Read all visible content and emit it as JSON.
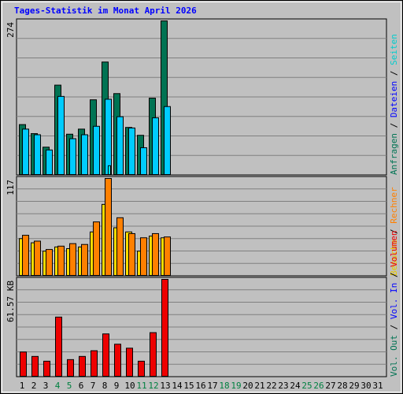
{
  "title": "Tages-Statistik im Monat April 2026",
  "colors": {
    "frame_bg": "#c0c0c0",
    "plot_bg": "#c0c0c0",
    "grid": "#808080",
    "title": "#0000ff",
    "requests": "#007353",
    "files": "#00ccff",
    "pages": "#00ffff",
    "visits": "#ffdd00",
    "sites": "#ff8000",
    "kbytes": "#ee0000",
    "weekend_label": "#008040",
    "day_label": "#000000",
    "vol_in": "#0000ff",
    "vol_out": "#007353"
  },
  "right_legend": {
    "top": [
      {
        "text": "Anfragen",
        "color": "#007353"
      },
      {
        "text": "Dateien",
        "color": "#0000ff"
      },
      {
        "text": "Seiten",
        "color": "#00cccc"
      }
    ],
    "middle": [
      {
        "text": "Besuche",
        "color": "#e8c800"
      },
      {
        "text": "Rechner",
        "color": "#ff8000"
      }
    ],
    "bottom": [
      {
        "text": "Vol. Out",
        "color": "#007353"
      },
      {
        "text": "Vol. In",
        "color": "#0000ff"
      },
      {
        "text": "Volumen",
        "color": "#ee0000"
      }
    ]
  },
  "chart_data": [
    {
      "type": "bar",
      "panel": "requests",
      "ymax_label": "274",
      "ylim": [
        0,
        274
      ],
      "x": [
        1,
        2,
        3,
        4,
        5,
        6,
        7,
        8,
        9,
        10,
        11,
        12,
        13
      ],
      "series": [
        {
          "name": "Anfragen",
          "values": [
            90,
            74,
            50,
            160,
            73,
            82,
            134,
            201,
            145,
            85,
            71,
            137,
            274
          ]
        },
        {
          "name": "Dateien",
          "values": [
            82,
            72,
            45,
            140,
            65,
            72,
            87,
            135,
            104,
            84,
            49,
            102,
            122
          ]
        },
        {
          "name": "Seiten",
          "values": [
            0,
            0,
            0,
            0,
            0,
            0,
            0,
            17,
            0,
            0,
            0,
            0,
            0
          ]
        }
      ]
    },
    {
      "type": "bar",
      "panel": "visits",
      "ymax_label": "117",
      "ylim": [
        0,
        117
      ],
      "x": [
        1,
        2,
        3,
        4,
        5,
        6,
        7,
        8,
        9,
        10,
        11,
        12,
        13
      ],
      "series": [
        {
          "name": "Besuche",
          "values": [
            45,
            40,
            30,
            35,
            33,
            35,
            53,
            86,
            58,
            53,
            30,
            48,
            46
          ]
        },
        {
          "name": "Rechner",
          "values": [
            49,
            42,
            32,
            36,
            39,
            38,
            65,
            117,
            70,
            51,
            46,
            51,
            47
          ]
        }
      ]
    },
    {
      "type": "bar",
      "panel": "kbytes",
      "ymax_label": "61.57 KB",
      "ylim": [
        0,
        61.57
      ],
      "x": [
        1,
        2,
        3,
        4,
        5,
        6,
        7,
        8,
        9,
        10,
        11,
        12,
        13
      ],
      "series": [
        {
          "name": "Volumen",
          "values": [
            15.8,
            13.0,
            10.0,
            37.8,
            11.0,
            13.0,
            16.6,
            27.2,
            20.7,
            18.2,
            10.0,
            28.0,
            61.57
          ]
        }
      ]
    }
  ],
  "days": [
    "1",
    "2",
    "3",
    "4",
    "5",
    "6",
    "7",
    "8",
    "9",
    "10",
    "11",
    "12",
    "13",
    "14",
    "15",
    "16",
    "17",
    "18",
    "19",
    "20",
    "21",
    "22",
    "23",
    "24",
    "25",
    "26",
    "27",
    "28",
    "29",
    "30",
    "31"
  ],
  "weekend_days": [
    4,
    5,
    11,
    12,
    18,
    19,
    25,
    26
  ]
}
